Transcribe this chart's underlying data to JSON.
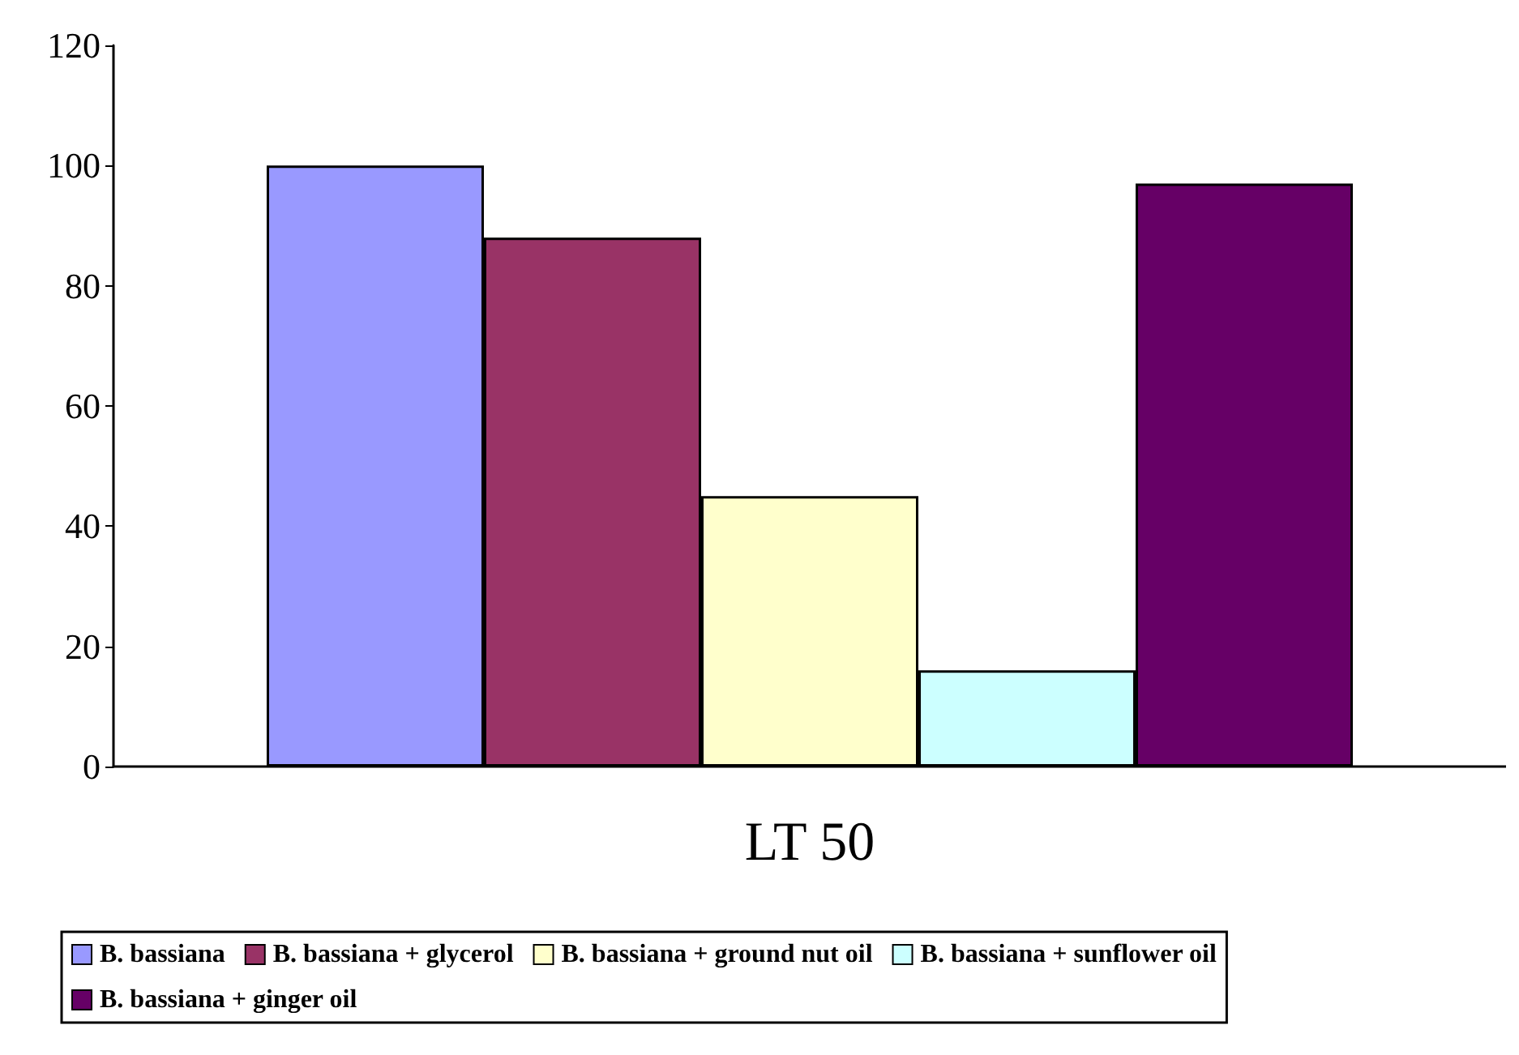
{
  "chart_data": {
    "type": "bar",
    "categories": [
      "LT 50"
    ],
    "series": [
      {
        "name": "B. bassiana",
        "color": "#9999ff",
        "values": [
          100
        ]
      },
      {
        "name": "B. bassiana + glycerol",
        "color": "#993366",
        "values": [
          88
        ]
      },
      {
        "name": "B. bassiana + ground nut oil",
        "color": "#ffffcc",
        "values": [
          45
        ]
      },
      {
        "name": "B. bassiana + sunflower oil",
        "color": "#ccffff",
        "values": [
          16
        ]
      },
      {
        "name": "B. bassiana + ginger oil",
        "color": "#660066",
        "values": [
          97
        ]
      }
    ],
    "ylim": [
      0,
      120
    ],
    "yticks": [
      0,
      20,
      40,
      60,
      80,
      100,
      120
    ],
    "grid": false,
    "legend": "bottom"
  }
}
